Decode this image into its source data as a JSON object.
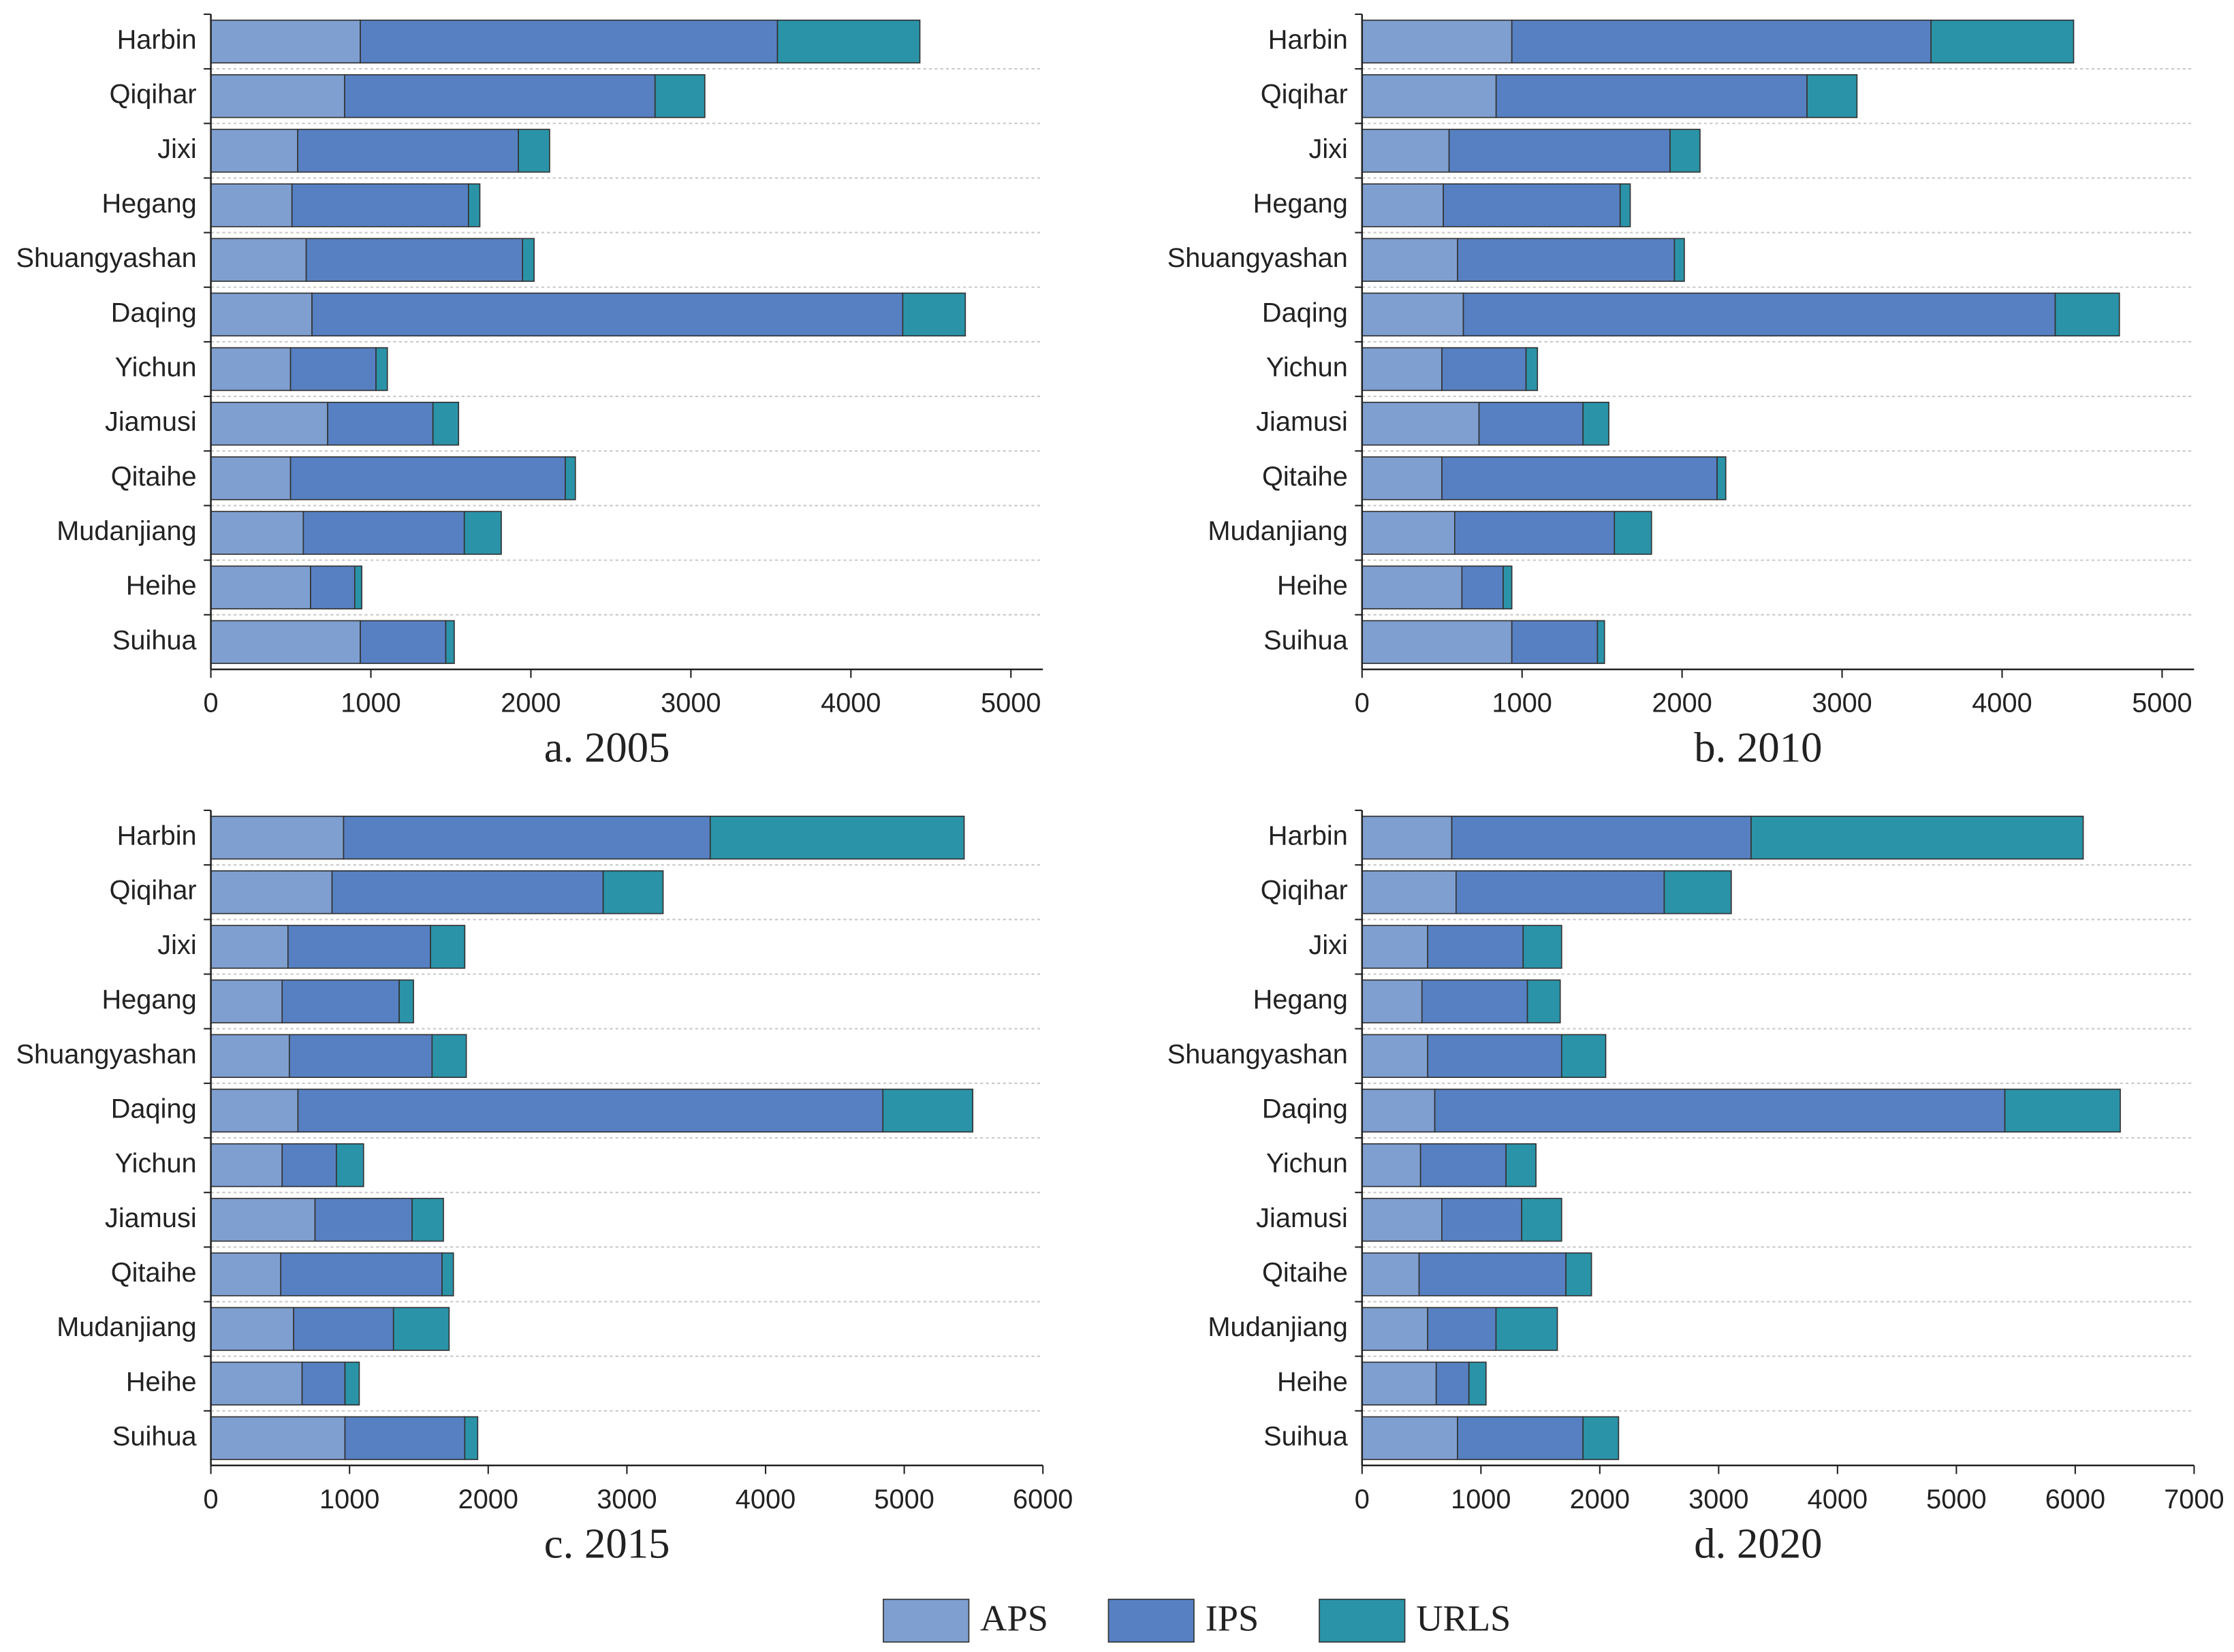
{
  "chart_data": [
    {
      "type": "bar",
      "orientation": "horizontal",
      "title": "a. 2005",
      "categories": [
        "Harbin",
        "Qiqihar",
        "Jixi",
        "Hegang",
        "Shuangyashan",
        "Daqing",
        "Yichun",
        "Jiamusi",
        "Qitaihe",
        "Mudanjiang",
        "Heihe",
        "Suihua"
      ],
      "series": [
        {
          "name": "APS",
          "color": "#7f9fd0",
          "values": [
            934,
            836,
            543,
            507,
            596,
            632,
            498,
            730,
            498,
            578,
            623,
            934
          ]
        },
        {
          "name": "IPS",
          "color": "#5680c2",
          "values": [
            2607,
            1940,
            1379,
            1103,
            1352,
            3692,
            534,
            658,
            1717,
            1006,
            276,
            534
          ]
        },
        {
          "name": "URLS",
          "color": "#2a93a8",
          "values": [
            890,
            311,
            195,
            71,
            72,
            391,
            71,
            160,
            63,
            231,
            44,
            53
          ]
        }
      ],
      "xlim": [
        0,
        5200
      ],
      "xticks": [
        0,
        1000,
        2000,
        3000,
        4000,
        5000
      ],
      "grid": true
    },
    {
      "type": "bar",
      "orientation": "horizontal",
      "title": "b. 2010",
      "categories": [
        "Harbin",
        "Qiqihar",
        "Jixi",
        "Hegang",
        "Shuangyashan",
        "Daqing",
        "Yichun",
        "Jiamusi",
        "Qitaihe",
        "Mudanjiang",
        "Heihe",
        "Suihua"
      ],
      "series": [
        {
          "name": "APS",
          "color": "#7f9fd0",
          "values": [
            936,
            838,
            544,
            508,
            597,
            633,
            499,
            731,
            499,
            579,
            624,
            936
          ]
        },
        {
          "name": "IPS",
          "color": "#5680c2",
          "values": [
            2620,
            1943,
            1381,
            1105,
            1355,
            3699,
            526,
            650,
            1720,
            998,
            258,
            535
          ]
        },
        {
          "name": "URLS",
          "color": "#2a93a8",
          "values": [
            891,
            312,
            187,
            63,
            62,
            401,
            71,
            161,
            54,
            232,
            54,
            44
          ]
        }
      ],
      "xlim": [
        0,
        5200
      ],
      "xticks": [
        0,
        1000,
        2000,
        3000,
        4000,
        5000
      ],
      "grid": true
    },
    {
      "type": "bar",
      "orientation": "horizontal",
      "title": "c. 2015",
      "categories": [
        "Harbin",
        "Qiqihar",
        "Jixi",
        "Hegang",
        "Shuangyashan",
        "Daqing",
        "Yichun",
        "Jiamusi",
        "Qitaihe",
        "Mudanjiang",
        "Heihe",
        "Suihua"
      ],
      "series": [
        {
          "name": "APS",
          "color": "#7f9fd0",
          "values": [
            957,
            874,
            556,
            514,
            566,
            628,
            514,
            751,
            504,
            597,
            658,
            967
          ]
        },
        {
          "name": "IPS",
          "color": "#5680c2",
          "values": [
            2644,
            1955,
            1028,
            844,
            1029,
            4218,
            391,
            700,
            1163,
            720,
            309,
            864
          ]
        },
        {
          "name": "URLS",
          "color": "#2a93a8",
          "values": [
            1831,
            432,
            247,
            103,
            247,
            648,
            196,
            226,
            82,
            401,
            103,
            93
          ]
        }
      ],
      "xlim": [
        0,
        6000
      ],
      "xticks": [
        0,
        1000,
        2000,
        3000,
        4000,
        5000,
        6000
      ],
      "grid": true
    },
    {
      "type": "bar",
      "orientation": "horizontal",
      "title": "d. 2020",
      "categories": [
        "Harbin",
        "Qiqihar",
        "Jixi",
        "Hegang",
        "Shuangyashan",
        "Daqing",
        "Yichun",
        "Jiamusi",
        "Qitaihe",
        "Mudanjiang",
        "Heihe",
        "Suihua"
      ],
      "series": [
        {
          "name": "APS",
          "color": "#7f9fd0",
          "values": [
            755,
            791,
            552,
            504,
            552,
            612,
            492,
            671,
            480,
            552,
            624,
            803
          ]
        },
        {
          "name": "IPS",
          "color": "#5680c2",
          "values": [
            2518,
            1751,
            803,
            887,
            1127,
            4796,
            719,
            672,
            1235,
            575,
            275,
            1056
          ]
        },
        {
          "name": "URLS",
          "color": "#2a93a8",
          "values": [
            2794,
            564,
            324,
            276,
            371,
            971,
            252,
            336,
            215,
            516,
            144,
            299
          ]
        }
      ],
      "xlim": [
        0,
        7000
      ],
      "xticks": [
        0,
        1000,
        2000,
        3000,
        4000,
        5000,
        6000,
        7000
      ],
      "grid": true
    }
  ]
}
